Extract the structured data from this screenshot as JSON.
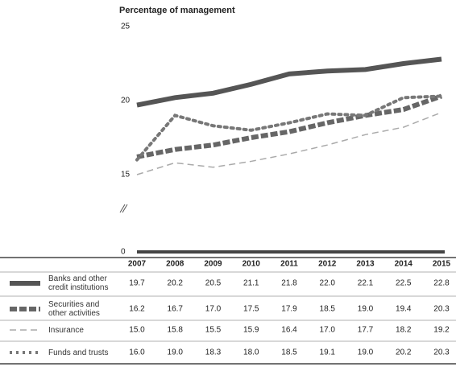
{
  "chart_data": {
    "type": "line",
    "title": "Percentage of management",
    "categories": [
      "2007",
      "2008",
      "2009",
      "2010",
      "2011",
      "2012",
      "2013",
      "2014",
      "2015"
    ],
    "series": [
      {
        "name": "Banks and other credit institutions",
        "color": "#555555",
        "style": "solid-thick",
        "values": [
          19.7,
          20.2,
          20.5,
          21.1,
          21.8,
          22.0,
          22.1,
          22.5,
          22.8
        ],
        "value_labels": [
          "19.7",
          "20.2",
          "20.5",
          "21.1",
          "21.8",
          "22.0",
          "22.1",
          "22.5",
          "22.8"
        ]
      },
      {
        "name": "Securities and other activities",
        "color": "#666666",
        "style": "dashed-thick",
        "values": [
          16.2,
          16.7,
          17.0,
          17.5,
          17.9,
          18.5,
          19.0,
          19.4,
          20.3
        ],
        "value_labels": [
          "16.2",
          "16.7",
          "17.0",
          "17.5",
          "17.9",
          "18.5",
          "19.0",
          "19.4",
          "20.3"
        ]
      },
      {
        "name": "Insurance",
        "color": "#aaaaaa",
        "style": "dashed-thin",
        "values": [
          15.0,
          15.8,
          15.5,
          15.9,
          16.4,
          17.0,
          17.7,
          18.2,
          19.2
        ],
        "value_labels": [
          "15.0",
          "15.8",
          "15.5",
          "15.9",
          "16.4",
          "17.0",
          "17.7",
          "18.2",
          "19.2"
        ]
      },
      {
        "name": "Funds and trusts",
        "color": "#777777",
        "style": "dotted",
        "values": [
          16.0,
          19.0,
          18.3,
          18.0,
          18.5,
          19.1,
          19.0,
          20.2,
          20.3
        ],
        "value_labels": [
          "16.0",
          "19.0",
          "18.3",
          "18.0",
          "18.5",
          "19.1",
          "19.0",
          "20.2",
          "20.3"
        ]
      }
    ],
    "ylim": [
      0,
      25
    ],
    "yticks": [
      0,
      15,
      20,
      25
    ],
    "y_break": [
      0,
      15
    ],
    "grid": false
  }
}
